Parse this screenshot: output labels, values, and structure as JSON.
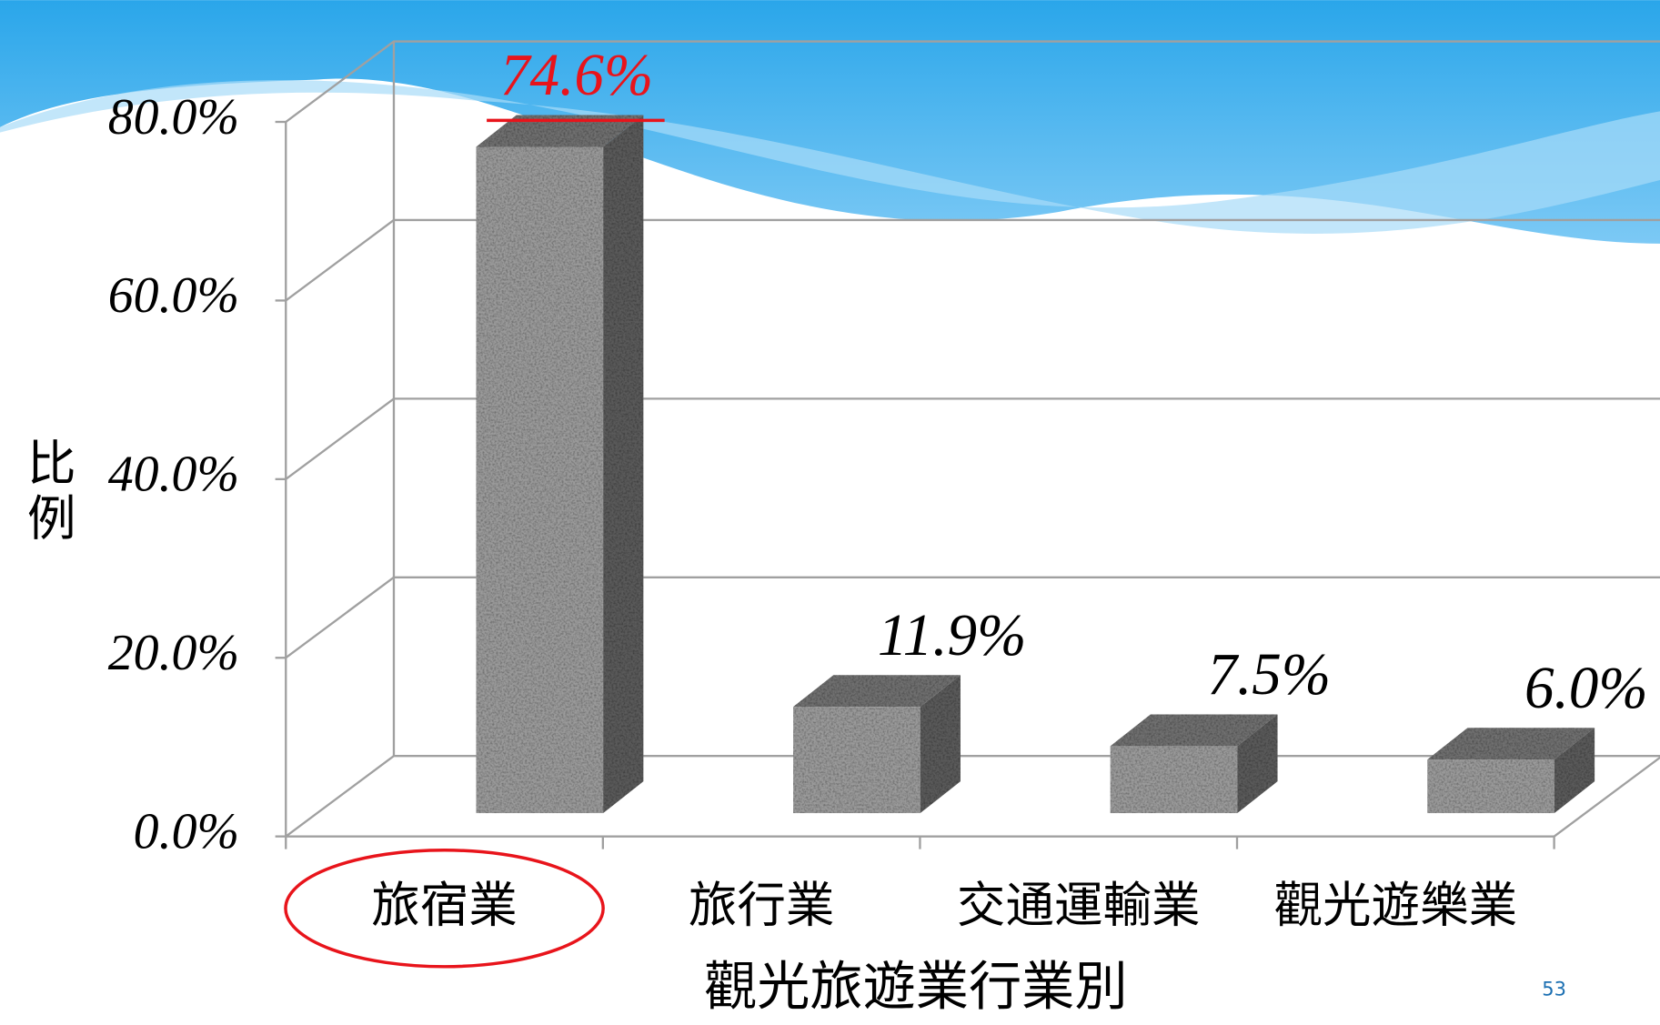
{
  "chart_data": {
    "type": "bar3d",
    "x_label": "觀光旅遊業行業別",
    "y_label": "比例",
    "categories": [
      "旅宿業",
      "旅行業",
      "交通運輸業",
      "觀光遊樂業"
    ],
    "values": [
      74.6,
      11.9,
      7.5,
      6.0
    ],
    "value_labels": [
      "74.6%",
      "11.9%",
      "7.5%",
      "6.0%"
    ],
    "value_label_colors": [
      "#e8141b",
      "#000000",
      "#000000",
      "#000000"
    ],
    "highlight_index": 0,
    "highlight_color": "#e8141b",
    "color": "#9a9a9a",
    "ylim": [
      0,
      80
    ],
    "yticks": [
      {
        "value": 0,
        "label": "0.0%"
      },
      {
        "value": 20,
        "label": "20.0%"
      },
      {
        "value": 40,
        "label": "40.0%"
      },
      {
        "value": 60,
        "label": "60.0%"
      },
      {
        "value": 80,
        "label": "80.0%"
      }
    ],
    "grid": true
  },
  "page_number": "53"
}
